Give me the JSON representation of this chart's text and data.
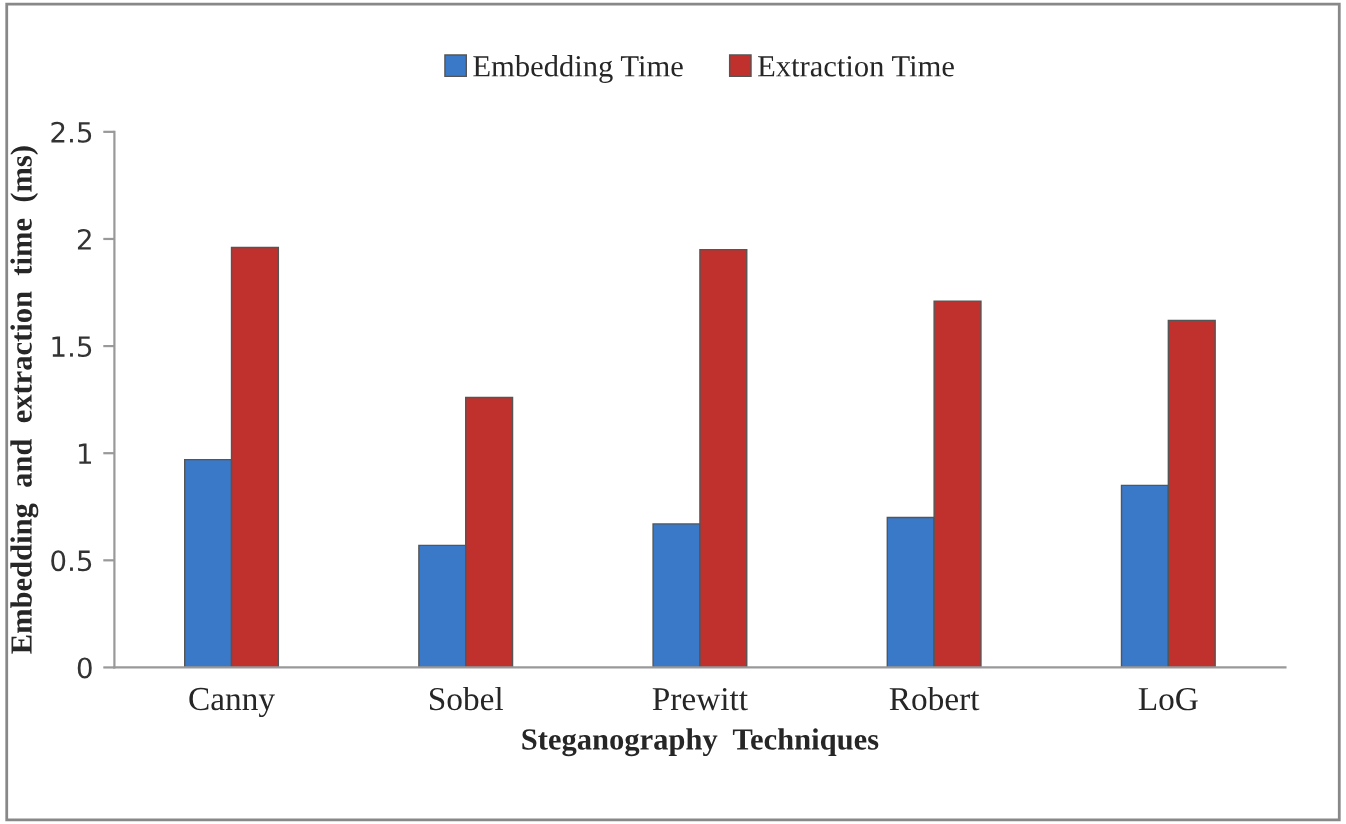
{
  "chart_data": {
    "type": "bar",
    "xlabel": "Steganography  Techniques",
    "ylabel": "Embedding  and  extraction  time  (ms)",
    "categories": [
      "Canny",
      "Sobel",
      "Prewitt",
      "Robert",
      "LoG"
    ],
    "series": [
      {
        "name": "Embedding Time",
        "color": "#3a78c8",
        "values": [
          0.97,
          0.57,
          0.67,
          0.7,
          0.85
        ]
      },
      {
        "name": "Extraction Time",
        "color": "#c0302c",
        "values": [
          1.96,
          1.26,
          1.95,
          1.71,
          1.62
        ]
      }
    ],
    "ylim": [
      0,
      2.5
    ],
    "yticks": [
      0,
      0.5,
      1,
      1.5,
      2,
      2.5
    ],
    "grid": false,
    "legend": "top"
  }
}
